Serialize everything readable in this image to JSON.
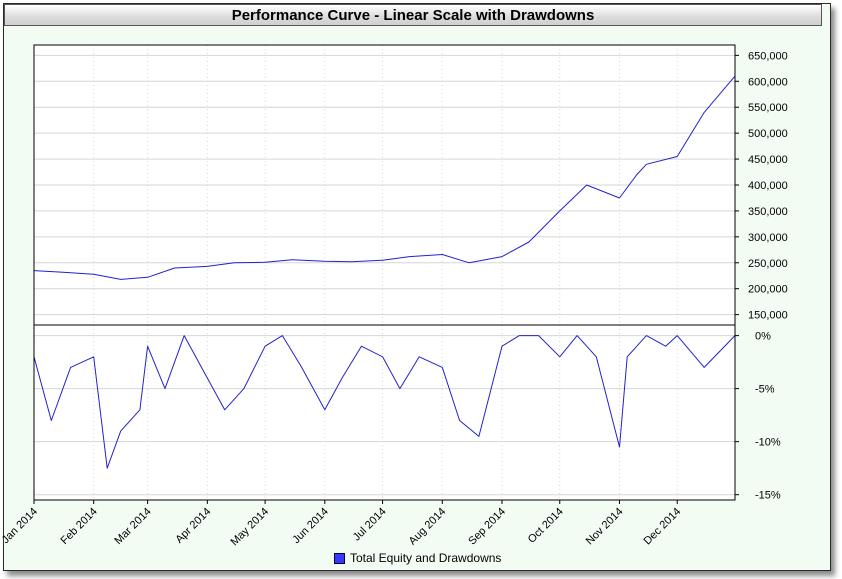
{
  "chart_data": [
    {
      "type": "line",
      "title": "Performance Curve - Linear Scale with Drawdowns",
      "panel": "equity",
      "x": [
        "2014-01-01",
        "2014-01-15",
        "2014-02-01",
        "2014-02-15",
        "2014-03-01",
        "2014-03-15",
        "2014-04-01",
        "2014-04-15",
        "2014-05-01",
        "2014-05-15",
        "2014-06-01",
        "2014-06-15",
        "2014-07-01",
        "2014-07-15",
        "2014-08-01",
        "2014-08-15",
        "2014-09-01",
        "2014-09-15",
        "2014-10-01",
        "2014-10-15",
        "2014-11-01",
        "2014-11-10",
        "2014-11-15",
        "2014-12-01",
        "2014-12-15",
        "2014-12-31"
      ],
      "series": [
        {
          "name": "Total Equity and Drawdowns",
          "values": [
            235000,
            232000,
            228000,
            218000,
            222000,
            240000,
            243000,
            250000,
            251000,
            256000,
            253000,
            252000,
            255000,
            262000,
            266000,
            250000,
            262000,
            290000,
            350000,
            400000,
            375000,
            420000,
            440000,
            455000,
            540000,
            610000
          ]
        }
      ],
      "ylim": [
        130000,
        670000
      ],
      "yticks": [
        "150,000",
        "200,000",
        "250,000",
        "300,000",
        "350,000",
        "400,000",
        "450,000",
        "500,000",
        "550,000",
        "600,000",
        "650,000"
      ],
      "grid": true,
      "line_color": "#2222cc"
    },
    {
      "type": "line",
      "panel": "drawdown",
      "x": [
        "2014-01-01",
        "2014-01-10",
        "2014-01-20",
        "2014-02-01",
        "2014-02-08",
        "2014-02-15",
        "2014-02-25",
        "2014-03-01",
        "2014-03-10",
        "2014-03-20",
        "2014-04-01",
        "2014-04-10",
        "2014-04-20",
        "2014-05-01",
        "2014-05-10",
        "2014-05-20",
        "2014-06-01",
        "2014-06-10",
        "2014-06-20",
        "2014-07-01",
        "2014-07-10",
        "2014-07-20",
        "2014-08-01",
        "2014-08-10",
        "2014-08-20",
        "2014-09-01",
        "2014-09-10",
        "2014-09-20",
        "2014-10-01",
        "2014-10-10",
        "2014-10-20",
        "2014-11-01",
        "2014-11-05",
        "2014-11-15",
        "2014-11-25",
        "2014-12-01",
        "2014-12-15",
        "2014-12-31"
      ],
      "series": [
        {
          "name": "Total Equity and Drawdowns",
          "values": [
            -2,
            -8,
            -3,
            -2,
            -12.5,
            -9,
            -7,
            -1,
            -5,
            0,
            -4,
            -7,
            -5,
            -1,
            0,
            -3,
            -7,
            -4,
            -1,
            -2,
            -5,
            -2,
            -3,
            -8,
            -9.5,
            -1,
            0,
            0,
            -2,
            0,
            -2,
            -10.5,
            -2,
            0,
            -1,
            0,
            -3,
            0
          ]
        }
      ],
      "ylim": [
        -15.5,
        1
      ],
      "yticks": [
        "-15%",
        "-10%",
        "-5%",
        "0%"
      ],
      "grid": true,
      "line_color": "#2222cc"
    }
  ],
  "x_axis": {
    "month_labels": [
      "Jan 2014",
      "Feb 2014",
      "Mar 2014",
      "Apr 2014",
      "May 2014",
      "Jun 2014",
      "Jul 2014",
      "Aug 2014",
      "Sep 2014",
      "Oct 2014",
      "Nov 2014",
      "Dec 2014"
    ]
  },
  "legend": {
    "label": "Total Equity and Drawdowns",
    "color": "#3838ff"
  },
  "colors": {
    "background": "#f3fcf3",
    "plot_background": "#ffffff",
    "grid": "#d6d6d6",
    "line": "#2222cc"
  }
}
